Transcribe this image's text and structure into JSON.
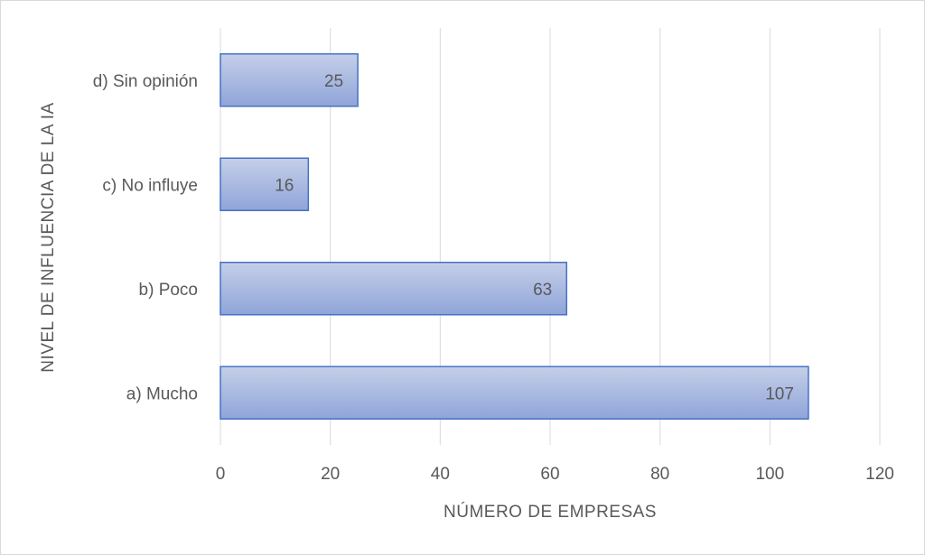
{
  "chart_data": {
    "type": "bar",
    "orientation": "horizontal",
    "categories": [
      "a) Mucho",
      "b) Poco",
      "c) No influye",
      "d) Sin opinión"
    ],
    "values": [
      107,
      63,
      16,
      25
    ],
    "title": "",
    "xlabel": "NÚMERO DE EMPRESAS",
    "ylabel": "NIVEL DE INFLUENCIA DE LA IA",
    "xlim": [
      0,
      120
    ],
    "x_ticks": [
      0,
      20,
      40,
      60,
      80,
      100,
      120
    ],
    "data_labels": true,
    "grid": "vertical",
    "legend": "none",
    "colors": {
      "bar_fill_top": "#c5cfe8",
      "bar_fill_bottom": "#8fa4d9",
      "bar_border": "#4472c4",
      "gridline": "#d9d9d9",
      "text": "#595959"
    }
  }
}
